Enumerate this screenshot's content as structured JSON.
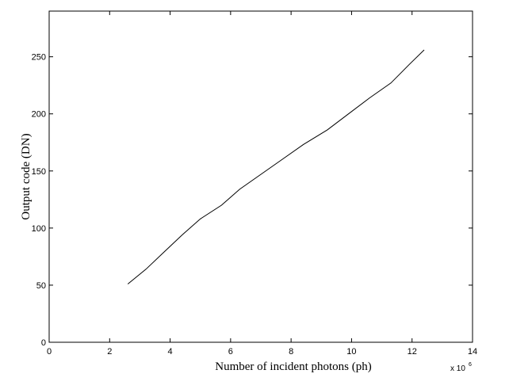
{
  "chart_data": {
    "type": "line",
    "title": "",
    "xlabel": "Number of incident photons (ph)",
    "ylabel": "Output code (DN)",
    "x_multiplier": "x 10",
    "x_multiplier_exp": "6",
    "xlim": [
      0,
      14
    ],
    "ylim": [
      0,
      290
    ],
    "xticks": [
      0,
      2,
      4,
      6,
      8,
      10,
      12,
      14
    ],
    "yticks": [
      0,
      50,
      100,
      150,
      200,
      250
    ],
    "grid": false,
    "legend": "none",
    "line_color": "#000000",
    "series": [
      {
        "x": [
          2.6,
          3.2,
          3.8,
          4.4,
          5.0,
          5.7,
          6.3,
          7.0,
          7.7,
          8.4,
          9.2,
          9.9,
          10.6,
          11.3,
          11.9,
          12.4
        ],
        "y": [
          51,
          64,
          79,
          94,
          108,
          120,
          134,
          147,
          160,
          173,
          186,
          200,
          214,
          227,
          243,
          256
        ]
      }
    ]
  }
}
